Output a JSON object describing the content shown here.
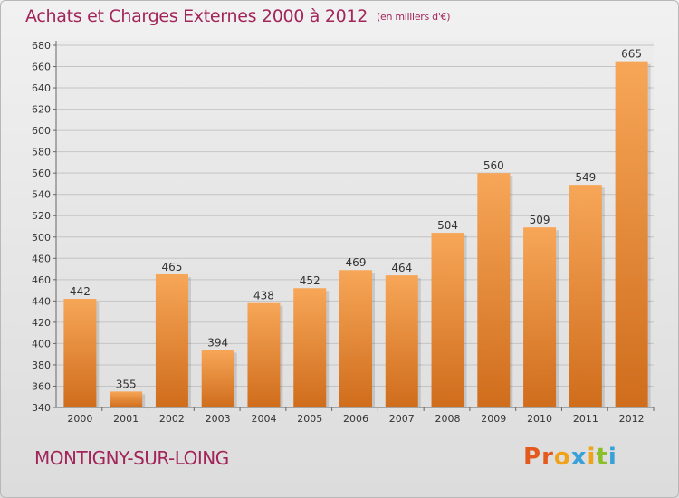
{
  "header": {
    "title": "Achats et Charges Externes 2000 à 2012",
    "subtitle": "(en milliers d'€)"
  },
  "footer": {
    "commune": "MONTIGNY-SUR-LOING",
    "logo": "Proxiti"
  },
  "colors": {
    "title": "#a2255a",
    "bar_top": "#f7a658",
    "bar_bottom": "#cf6d1c",
    "logo_letters": [
      "#e35a1e",
      "#e35a1e",
      "#f0a21a",
      "#3aa0d8",
      "#f0a21a",
      "#8bbf2a",
      "#3aa0d8"
    ]
  },
  "chart_data": {
    "type": "bar",
    "title": "Achats et Charges Externes 2000 à 2012",
    "subtitle": "(en milliers d'€)",
    "categories": [
      "2000",
      "2001",
      "2002",
      "2003",
      "2004",
      "2005",
      "2006",
      "2007",
      "2008",
      "2009",
      "2010",
      "2011",
      "2012"
    ],
    "values": [
      442,
      355,
      465,
      394,
      438,
      452,
      469,
      464,
      504,
      560,
      509,
      549,
      665
    ],
    "ylim": [
      340,
      680
    ],
    "yticks": [
      340,
      360,
      380,
      400,
      420,
      440,
      460,
      480,
      500,
      520,
      540,
      560,
      580,
      600,
      620,
      640,
      660,
      680
    ],
    "grid": true,
    "data_labels": true,
    "legend": "none"
  }
}
